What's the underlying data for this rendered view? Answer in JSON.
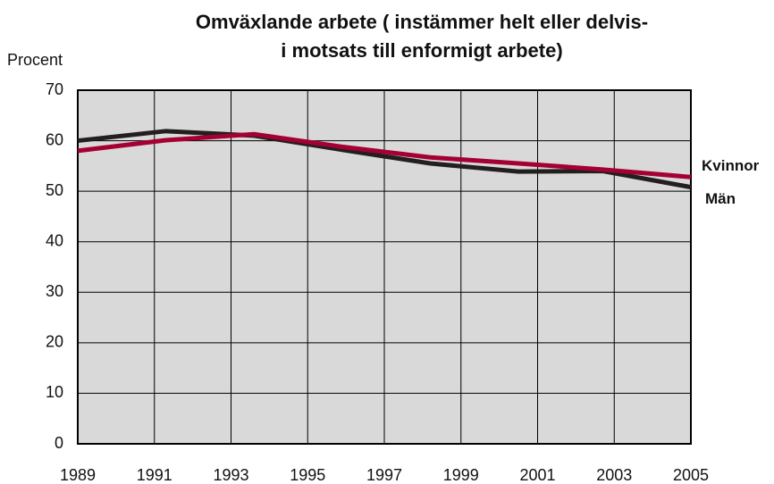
{
  "chart_data": {
    "type": "line",
    "title": [
      "Omväxlande arbete ( instämmer helt eller delvis-",
      "i motsats till enformigt arbete)"
    ],
    "y_label": "Procent",
    "x": [
      1989,
      1991.3,
      1993.6,
      1995.9,
      1998.2,
      2000.5,
      2002.7,
      2005
    ],
    "series": [
      {
        "name": "Män",
        "color": "#231f20",
        "values": [
          60,
          61.9,
          61,
          58.2,
          55.5,
          53.9,
          54,
          50.8
        ]
      },
      {
        "name": "Kvinnor",
        "color": "#a50034",
        "values": [
          58,
          60.1,
          61.3,
          58.8,
          56.7,
          55.5,
          54.3,
          52.8
        ]
      }
    ],
    "xlim": [
      1989,
      2005
    ],
    "xticks": [
      1989,
      1991,
      1993,
      1995,
      1997,
      1999,
      2001,
      2003,
      2005
    ],
    "ylim": [
      0,
      70
    ],
    "yticks": [
      0,
      10,
      20,
      30,
      40,
      50,
      60,
      70
    ],
    "grid": true
  }
}
